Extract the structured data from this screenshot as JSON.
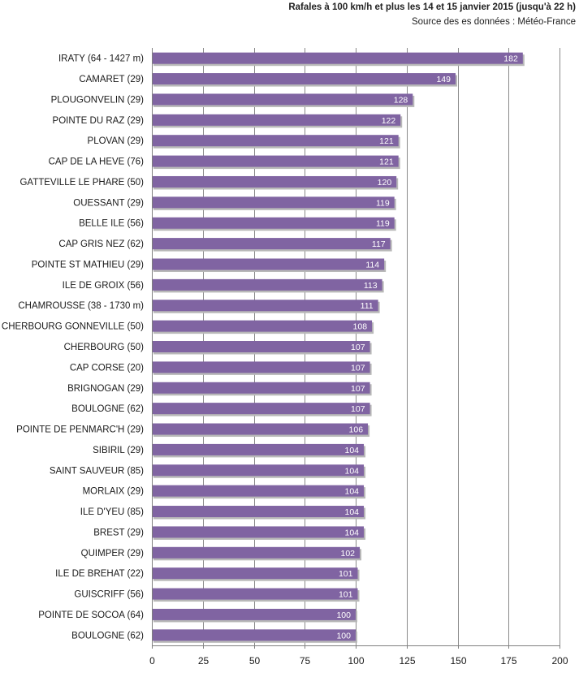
{
  "chart_data": {
    "type": "bar",
    "orientation": "horizontal",
    "title": "Rafales à 100 km/h et plus les 14 et 15 janvier 2015 (jusqu'à  22 h)",
    "subtitle": "Source des es données : Météo-France",
    "categories": [
      "IRATY (64 - 1427 m)",
      "CAMARET (29)",
      "PLOUGONVELIN (29)",
      "POINTE DU RAZ (29)",
      "PLOVAN (29)",
      "CAP DE LA HEVE (76)",
      "GATTEVILLE LE PHARE (50)",
      "OUESSANT (29)",
      "BELLE ILE (56)",
      "CAP GRIS NEZ (62)",
      "POINTE ST MATHIEU (29)",
      "ILE DE GROIX (56)",
      "CHAMROUSSE (38 - 1730 m)",
      "CHERBOURG GONNEVILLE (50)",
      "CHERBOURG (50)",
      "CAP CORSE (20)",
      "BRIGNOGAN (29)",
      "BOULOGNE (62)",
      "POINTE DE PENMARC'H (29)",
      "SIBIRIL (29)",
      "SAINT SAUVEUR (85)",
      "MORLAIX (29)",
      "ILE D'YEU (85)",
      "BREST (29)",
      "QUIMPER (29)",
      "ILE DE BREHAT (22)",
      "GUISCRIFF (56)",
      "POINTE DE SOCOA (64)",
      "BOULOGNE (62)"
    ],
    "values": [
      182,
      149,
      128,
      122,
      121,
      121,
      120,
      119,
      119,
      117,
      114,
      113,
      111,
      108,
      107,
      107,
      107,
      107,
      106,
      104,
      104,
      104,
      104,
      104,
      102,
      101,
      101,
      100,
      100
    ],
    "xlim": [
      0,
      200
    ],
    "xticks": [
      0,
      25,
      50,
      75,
      100,
      125,
      150,
      175,
      200
    ],
    "grid": "vertical",
    "legend": "none",
    "colors": {
      "bar": "#8064a2",
      "bar_shadow": "#b8b8b8",
      "grid": "#8a8a8a",
      "axis": "#7f7f7f"
    }
  }
}
